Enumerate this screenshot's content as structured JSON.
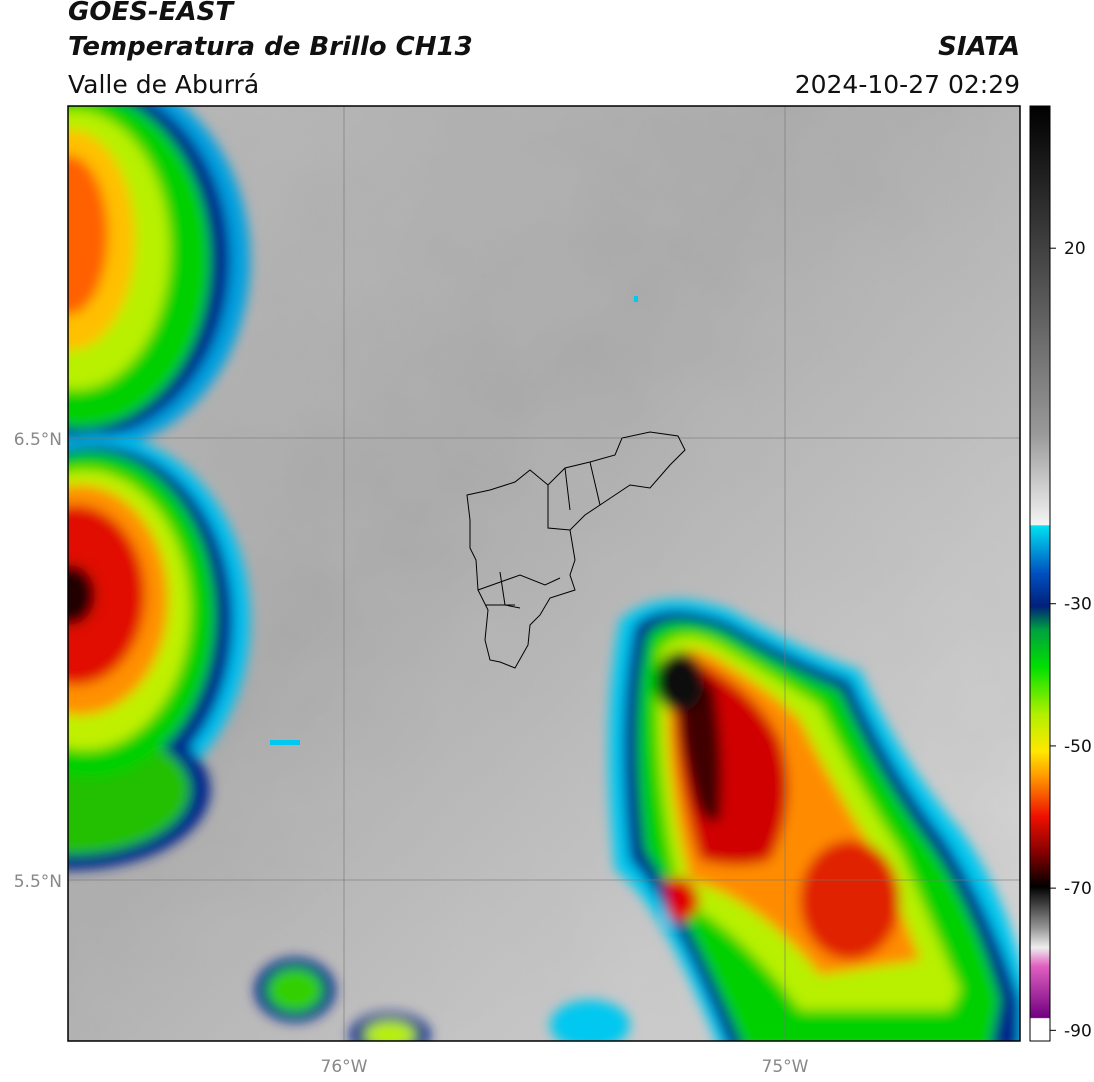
{
  "header": {
    "satellite": "GOES-EAST",
    "title": "Temperatura de Brillo CH13",
    "region": "Valle de Aburrá",
    "source": "SIATA",
    "datetime": "2024-10-27 02:29"
  },
  "map": {
    "lat_labels": [
      "6.5°N",
      "5.5°N"
    ],
    "lon_labels": [
      "76°W",
      "75°W"
    ]
  },
  "colorbar": {
    "lim": [
      -91.5,
      40
    ],
    "ticks": [
      20,
      -30,
      -50,
      -70,
      -90
    ]
  }
}
